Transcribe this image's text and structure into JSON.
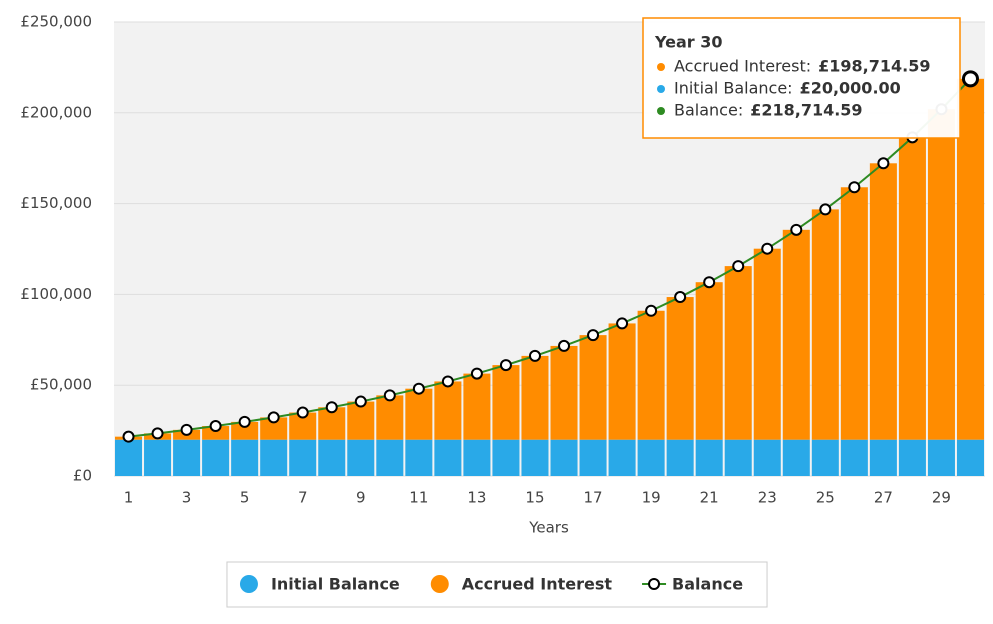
{
  "chart_data": {
    "type": "bar",
    "stacked": true,
    "x_label": "Years",
    "categories": [
      1,
      null,
      3,
      null,
      5,
      null,
      7,
      null,
      9,
      null,
      11,
      null,
      13,
      null,
      15,
      null,
      17,
      null,
      19,
      null,
      21,
      null,
      23,
      null,
      25,
      null,
      27,
      null,
      29,
      null
    ],
    "series": [
      {
        "name": "Initial Balance",
        "type": "bar",
        "color": "#29a9e8",
        "values": [
          20000,
          20000,
          20000,
          20000,
          20000,
          20000,
          20000,
          20000,
          20000,
          20000,
          20000,
          20000,
          20000,
          20000,
          20000,
          20000,
          20000,
          20000,
          20000,
          20000,
          20000,
          20000,
          20000,
          20000,
          20000,
          20000,
          20000,
          20000,
          20000,
          20000
        ]
      },
      {
        "name": "Accrued Interest",
        "type": "bar",
        "color": "#ff8c00",
        "values": [
          1660,
          3458,
          5405,
          7514,
          9797,
          12271,
          14949,
          17850,
          20992,
          24394,
          28079,
          32069,
          36391,
          41072,
          46141,
          51630,
          57576,
          64014,
          70988,
          78540,
          86719,
          95577,
          105170,
          115559,
          126810,
          138996,
          152192,
          166484,
          181962,
          198714.59
        ]
      },
      {
        "name": "Balance",
        "type": "line",
        "color": "#2e8b22",
        "values": [
          21660,
          23458,
          25405,
          27514,
          29797,
          32271,
          34949,
          37850,
          40992,
          44394,
          48079,
          52069,
          56391,
          61072,
          66141,
          71630,
          77576,
          84014,
          90988,
          98540,
          106719,
          115577,
          125170,
          135559,
          146810,
          158996,
          172192,
          186484,
          201962,
          218714.59
        ]
      }
    ],
    "ylim": [
      0,
      250000
    ],
    "yticks": [
      {
        "value": 0,
        "label": "£0"
      },
      {
        "value": 50000,
        "label": "£50,000"
      },
      {
        "value": 100000,
        "label": "£100,000"
      },
      {
        "value": 150000,
        "label": "£150,000"
      },
      {
        "value": 200000,
        "label": "£200,000"
      },
      {
        "value": 250000,
        "label": "£250,000"
      }
    ],
    "grid": true,
    "legend": "bottom",
    "tooltip": {
      "title": "Year 30",
      "items": [
        {
          "label": "Accrued Interest:",
          "value": "£198,714.59"
        },
        {
          "label": "Initial Balance:",
          "value": "£20,000.00"
        },
        {
          "label": "Balance:",
          "value": "£218,714.59"
        }
      ]
    }
  }
}
